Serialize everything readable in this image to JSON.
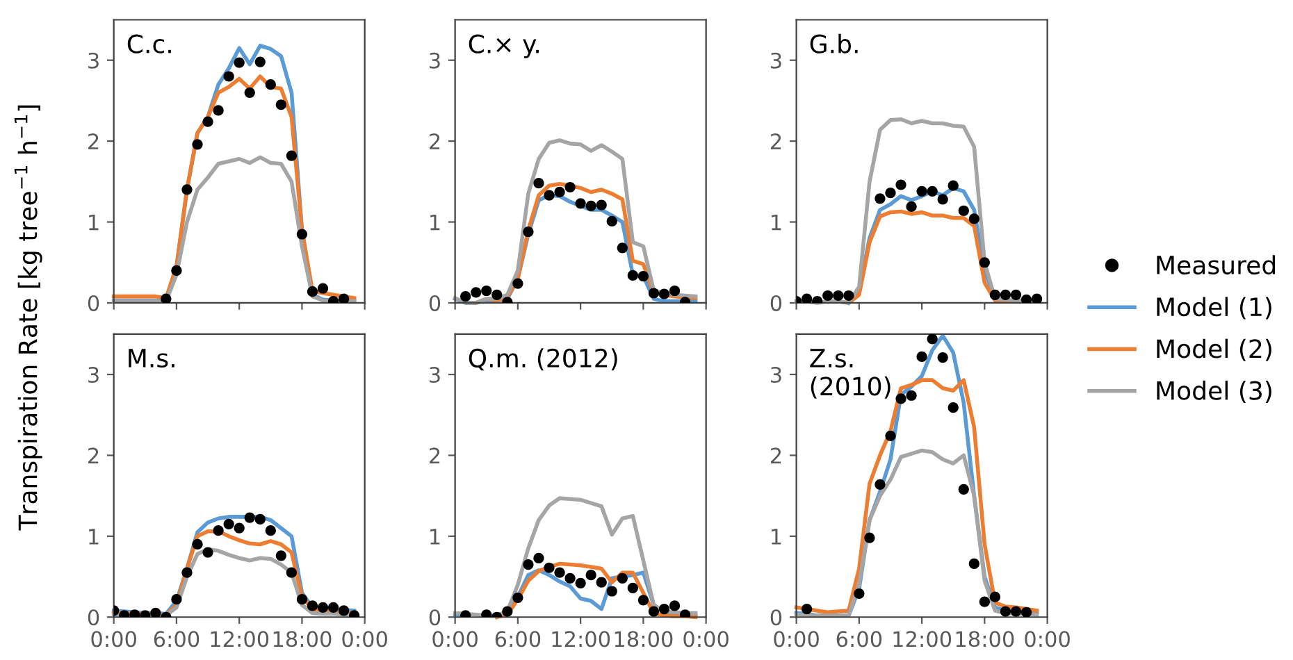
{
  "chart_data": [
    {
      "type": "line",
      "title": "C.c.",
      "ylabel": "Transpiration Rate [kg tree$^{−1}$ h$^{−1}$]",
      "tick_labels": "y",
      "legend": "right",
      "x": [
        0,
        1,
        2,
        3,
        4,
        5,
        6,
        7,
        8,
        9,
        10,
        11,
        12,
        13,
        14,
        15,
        16,
        17,
        18,
        19,
        20,
        21,
        22,
        23
      ],
      "xlim": [
        0,
        24
      ],
      "xticks": [
        {
          "value": 0,
          "label": null
        },
        {
          "value": 6,
          "label": null
        },
        {
          "value": 12,
          "label": null
        },
        {
          "value": 18,
          "label": null
        },
        {
          "value": 24,
          "label": null
        }
      ],
      "ylim": [
        0,
        3.5
      ],
      "yticks": [
        0,
        1,
        2,
        3
      ],
      "series": [
        {
          "name": "Measured",
          "type": "scatter",
          "marker": "circle",
          "color": "#000000",
          "values": [
            null,
            null,
            null,
            null,
            null,
            0.05,
            0.4,
            1.4,
            1.96,
            2.24,
            2.38,
            2.8,
            2.97,
            2.6,
            2.98,
            2.7,
            2.45,
            1.82,
            0.85,
            0.14,
            0.18,
            0.02,
            0.05,
            null
          ]
        },
        {
          "name": "Model (1)",
          "type": "line",
          "color": "#5b9bd5",
          "values": [
            0.03,
            0.03,
            0.03,
            0.03,
            0.03,
            0.03,
            0.45,
            1.4,
            2.1,
            2.3,
            2.7,
            2.9,
            3.15,
            2.95,
            3.18,
            3.14,
            3.05,
            2.6,
            0.9,
            0.1,
            0.04,
            0.03,
            0.03,
            0.03
          ]
        },
        {
          "name": "Model (2)",
          "type": "line",
          "color": "#ed7d31",
          "values": [
            0.08,
            0.08,
            0.08,
            0.08,
            0.08,
            0.06,
            0.45,
            1.4,
            2.1,
            2.3,
            2.6,
            2.67,
            2.77,
            2.65,
            2.8,
            2.67,
            2.65,
            2.3,
            0.9,
            0.15,
            0.12,
            0.1,
            0.08,
            0.06
          ]
        },
        {
          "name": "Model (3)",
          "type": "line",
          "color": "#a5a5a5",
          "values": [
            0.02,
            0.02,
            0.02,
            0.02,
            0.02,
            0.02,
            0.35,
            1.0,
            1.4,
            1.55,
            1.72,
            1.75,
            1.78,
            1.73,
            1.8,
            1.73,
            1.72,
            1.5,
            0.7,
            0.08,
            0.03,
            0.02,
            0.02,
            0.02
          ]
        }
      ]
    },
    {
      "type": "line",
      "title": "C.× y.",
      "tick_labels": "y",
      "x": [
        0,
        1,
        2,
        3,
        4,
        5,
        6,
        7,
        8,
        9,
        10,
        11,
        12,
        13,
        14,
        15,
        16,
        17,
        18,
        19,
        20,
        21,
        22,
        23
      ],
      "xlim": [
        0,
        24
      ],
      "xticks": [
        {
          "value": 0,
          "label": null
        },
        {
          "value": 6,
          "label": null
        },
        {
          "value": 12,
          "label": null
        },
        {
          "value": 18,
          "label": null
        },
        {
          "value": 24,
          "label": null
        }
      ],
      "ylim": [
        0,
        3.5
      ],
      "yticks": [
        0,
        1,
        2,
        3
      ],
      "series": [
        {
          "type": "scatter",
          "marker": "circle",
          "color": "#000000",
          "values": [
            null,
            0.08,
            0.13,
            0.15,
            0.1,
            0.01,
            0.24,
            0.88,
            1.48,
            1.33,
            1.37,
            1.43,
            1.23,
            1.2,
            1.21,
            1.01,
            0.68,
            0.34,
            0.33,
            0.12,
            0.11,
            0.15,
            0.01,
            null
          ]
        },
        {
          "type": "line",
          "color": "#5b9bd5",
          "values": [
            0.05,
            0.0,
            0.0,
            0.03,
            0.03,
            0.05,
            0.3,
            0.85,
            1.27,
            1.33,
            1.32,
            1.25,
            1.2,
            1.15,
            1.15,
            1.08,
            1.0,
            0.35,
            0.33,
            0.05,
            0.02,
            0.02,
            0.02,
            0.02
          ]
        },
        {
          "type": "line",
          "color": "#ed7d31",
          "values": [
            null,
            null,
            0.0,
            0.05,
            0.03,
            0.07,
            0.3,
            0.9,
            1.33,
            1.45,
            1.47,
            1.45,
            1.42,
            1.37,
            1.4,
            1.35,
            1.28,
            0.52,
            0.48,
            0.12,
            0.1,
            0.08,
            0.07,
            0.06
          ]
        },
        {
          "type": "line",
          "color": "#a5a5a5",
          "values": [
            0.06,
            0.0,
            0.0,
            0.05,
            0.05,
            0.1,
            0.4,
            1.35,
            1.78,
            1.98,
            2.01,
            1.97,
            1.96,
            1.88,
            1.95,
            1.87,
            1.78,
            0.75,
            0.7,
            0.15,
            0.12,
            0.1,
            0.09,
            0.08
          ]
        }
      ]
    },
    {
      "type": "line",
      "title": "G.b.",
      "tick_labels": "y",
      "x": [
        0,
        1,
        2,
        3,
        4,
        5,
        6,
        7,
        8,
        9,
        10,
        11,
        12,
        13,
        14,
        15,
        16,
        17,
        18,
        19,
        20,
        21,
        22,
        23
      ],
      "xlim": [
        0,
        24
      ],
      "xticks": [
        {
          "value": 0,
          "label": null
        },
        {
          "value": 6,
          "label": null
        },
        {
          "value": 12,
          "label": null
        },
        {
          "value": 18,
          "label": null
        },
        {
          "value": 24,
          "label": null
        }
      ],
      "ylim": [
        0,
        3.5
      ],
      "yticks": [
        0,
        1,
        2,
        3
      ],
      "series": [
        {
          "type": "scatter",
          "marker": "circle",
          "color": "#000000",
          "values": [
            0.02,
            0.05,
            0.02,
            0.09,
            0.09,
            0.09,
            null,
            null,
            1.29,
            1.36,
            1.46,
            1.19,
            1.38,
            1.38,
            1.28,
            1.45,
            1.14,
            1.04,
            0.5,
            0.1,
            0.1,
            0.1,
            0.04,
            0.05
          ]
        },
        {
          "type": "line",
          "color": "#5b9bd5",
          "values": [
            null,
            null,
            null,
            null,
            null,
            0.0,
            0.15,
            0.8,
            1.15,
            1.22,
            1.32,
            1.27,
            1.32,
            1.38,
            1.33,
            1.42,
            1.38,
            1.15,
            0.4,
            0.05,
            0.03,
            null,
            null,
            null
          ]
        },
        {
          "type": "line",
          "color": "#ed7d31",
          "values": [
            null,
            null,
            null,
            null,
            0.02,
            0.0,
            0.1,
            0.75,
            1.07,
            1.12,
            1.13,
            1.1,
            1.12,
            1.08,
            1.08,
            1.05,
            1.05,
            0.95,
            0.25,
            0.03,
            0.02,
            0.02,
            null,
            null
          ]
        },
        {
          "type": "line",
          "color": "#a5a5a5",
          "values": [
            0.02,
            0.02,
            0.0,
            0.02,
            0.02,
            0.0,
            0.2,
            1.5,
            2.14,
            2.26,
            2.27,
            2.22,
            2.25,
            2.22,
            2.22,
            2.19,
            2.18,
            1.93,
            0.5,
            0.05,
            0.04,
            0.03,
            0.03,
            0.03
          ]
        }
      ]
    },
    {
      "type": "line",
      "title": "M.s.",
      "x": [
        0,
        1,
        2,
        3,
        4,
        5,
        6,
        7,
        8,
        9,
        10,
        11,
        12,
        13,
        14,
        15,
        16,
        17,
        18,
        19,
        20,
        21,
        22,
        23
      ],
      "xlim": [
        0,
        24
      ],
      "xticks": [
        {
          "value": 0,
          "label": "0:00"
        },
        {
          "value": 6,
          "label": "6:00"
        },
        {
          "value": 12,
          "label": "12:00"
        },
        {
          "value": 18,
          "label": "18:00"
        },
        {
          "value": 24,
          "label": "0:00"
        }
      ],
      "ylim": [
        0,
        3.5
      ],
      "yticks": [
        0,
        1,
        2,
        3
      ],
      "series": [
        {
          "type": "scatter",
          "marker": "circle",
          "color": "#000000",
          "values": [
            0.08,
            0.02,
            0.03,
            0.02,
            0.05,
            0.0,
            0.22,
            0.55,
            0.9,
            0.8,
            1.07,
            1.15,
            1.1,
            1.23,
            1.21,
            1.07,
            0.76,
            0.55,
            0.22,
            0.14,
            0.12,
            0.12,
            0.08,
            0.02
          ]
        },
        {
          "type": "line",
          "color": "#5b9bd5",
          "values": [
            0.08,
            0.07,
            0.06,
            0.05,
            0.05,
            0.04,
            0.2,
            0.6,
            1.05,
            1.17,
            1.22,
            1.24,
            1.24,
            1.24,
            1.24,
            1.2,
            1.1,
            1.0,
            0.3,
            0.12,
            0.1,
            0.1,
            0.09,
            0.08
          ]
        },
        {
          "type": "line",
          "color": "#ed7d31",
          "values": [
            0.05,
            0.05,
            0.04,
            0.04,
            0.03,
            0.03,
            0.15,
            0.6,
            1.0,
            1.06,
            1.06,
            1.0,
            0.95,
            0.91,
            0.9,
            0.94,
            0.9,
            0.8,
            0.25,
            0.1,
            0.07,
            0.07,
            0.06,
            0.05
          ]
        },
        {
          "type": "line",
          "color": "#a5a5a5",
          "values": [
            0.03,
            0.03,
            0.03,
            0.02,
            0.02,
            0.02,
            0.12,
            0.5,
            0.78,
            0.84,
            0.82,
            0.77,
            0.73,
            0.7,
            0.73,
            0.72,
            0.65,
            0.55,
            0.15,
            0.05,
            0.04,
            0.04,
            0.03,
            0.03
          ]
        }
      ]
    },
    {
      "type": "line",
      "title": "Q.m. (2012)",
      "x": [
        0,
        1,
        2,
        3,
        4,
        5,
        6,
        7,
        8,
        9,
        10,
        11,
        12,
        13,
        14,
        15,
        16,
        17,
        18,
        19,
        20,
        21,
        22,
        23
      ],
      "xlim": [
        0,
        24
      ],
      "xticks": [
        {
          "value": 0,
          "label": "0:00"
        },
        {
          "value": 6,
          "label": "6:00"
        },
        {
          "value": 12,
          "label": "12:00"
        },
        {
          "value": 18,
          "label": "18:00"
        },
        {
          "value": 24,
          "label": "0:00"
        }
      ],
      "ylim": [
        0,
        3.5
      ],
      "yticks": [
        0,
        1,
        2,
        3
      ],
      "series": [
        {
          "type": "scatter",
          "marker": "circle",
          "color": "#000000",
          "values": [
            null,
            0.02,
            null,
            0.03,
            0.0,
            0.07,
            0.24,
            0.65,
            0.73,
            0.61,
            0.55,
            0.48,
            0.42,
            0.52,
            0.43,
            0.32,
            0.48,
            0.36,
            0.21,
            0.07,
            0.1,
            0.14,
            0.03,
            null
          ]
        },
        {
          "type": "line",
          "color": "#5b9bd5",
          "values": [
            0.03,
            0.02,
            null,
            null,
            0.0,
            0.05,
            0.25,
            0.52,
            0.58,
            0.52,
            0.44,
            0.38,
            0.23,
            0.2,
            0.1,
            0.48,
            0.5,
            0.52,
            0.55,
            0.15,
            0.05,
            0.04,
            0.03,
            0.02
          ]
        },
        {
          "type": "line",
          "color": "#ed7d31",
          "values": [
            null,
            null,
            null,
            null,
            0.0,
            0.03,
            0.22,
            0.45,
            0.57,
            0.62,
            0.66,
            0.65,
            0.64,
            0.62,
            0.6,
            0.43,
            0.55,
            0.55,
            0.3,
            0.05,
            0.02,
            0.01,
            0.01,
            0.0
          ]
        },
        {
          "type": "line",
          "color": "#a5a5a5",
          "values": [
            0.05,
            0.04,
            0.03,
            0.02,
            0.02,
            0.07,
            0.4,
            0.85,
            1.2,
            1.38,
            1.47,
            1.46,
            1.45,
            1.41,
            1.37,
            1.02,
            1.22,
            1.25,
            0.7,
            0.15,
            0.07,
            0.06,
            0.05,
            0.05
          ]
        }
      ]
    },
    {
      "type": "line",
      "title": "Z.s.\n(2010)",
      "x": [
        0,
        1,
        2,
        3,
        4,
        5,
        6,
        7,
        8,
        9,
        10,
        11,
        12,
        13,
        14,
        15,
        16,
        17,
        18,
        19,
        20,
        21,
        22,
        23
      ],
      "xlim": [
        0,
        24
      ],
      "xticks": [
        {
          "value": 0,
          "label": "0:00"
        },
        {
          "value": 6,
          "label": "6:00"
        },
        {
          "value": 12,
          "label": "12:00"
        },
        {
          "value": 18,
          "label": "18:00"
        },
        {
          "value": 24,
          "label": "0:00"
        }
      ],
      "ylim": [
        0,
        3.5
      ],
      "yticks": [
        0,
        1,
        2,
        3
      ],
      "series": [
        {
          "type": "scatter",
          "marker": "circle",
          "color": "#000000",
          "values": [
            null,
            0.1,
            null,
            null,
            null,
            null,
            0.29,
            0.98,
            1.64,
            2.24,
            2.7,
            2.74,
            3.22,
            3.44,
            3.21,
            2.59,
            1.58,
            0.66,
            0.19,
            0.25,
            0.07,
            0.07,
            0.06,
            null
          ]
        },
        {
          "type": "line",
          "color": "#5b9bd5",
          "values": [
            0.05,
            0.04,
            0.02,
            0.02,
            0.02,
            0.02,
            0.35,
            1.2,
            1.55,
            1.95,
            2.75,
            2.85,
            2.98,
            3.3,
            3.48,
            3.27,
            2.65,
            1.5,
            0.5,
            0.12,
            0.08,
            0.08,
            0.07,
            0.06
          ]
        },
        {
          "type": "line",
          "color": "#ed7d31",
          "values": [
            0.12,
            0.1,
            0.08,
            0.06,
            0.07,
            0.08,
            0.6,
            1.65,
            2.0,
            2.3,
            2.83,
            2.87,
            2.93,
            2.93,
            2.83,
            2.8,
            2.93,
            2.35,
            0.9,
            0.18,
            0.13,
            0.12,
            0.1,
            0.08
          ]
        },
        {
          "type": "line",
          "color": "#a5a5a5",
          "values": [
            0.03,
            0.03,
            0.02,
            0.02,
            0.02,
            0.02,
            0.4,
            1.2,
            1.5,
            1.7,
            1.98,
            2.02,
            2.06,
            2.04,
            1.95,
            1.9,
            2.0,
            1.5,
            0.45,
            0.08,
            0.05,
            0.04,
            0.04,
            0.03
          ]
        }
      ]
    }
  ]
}
